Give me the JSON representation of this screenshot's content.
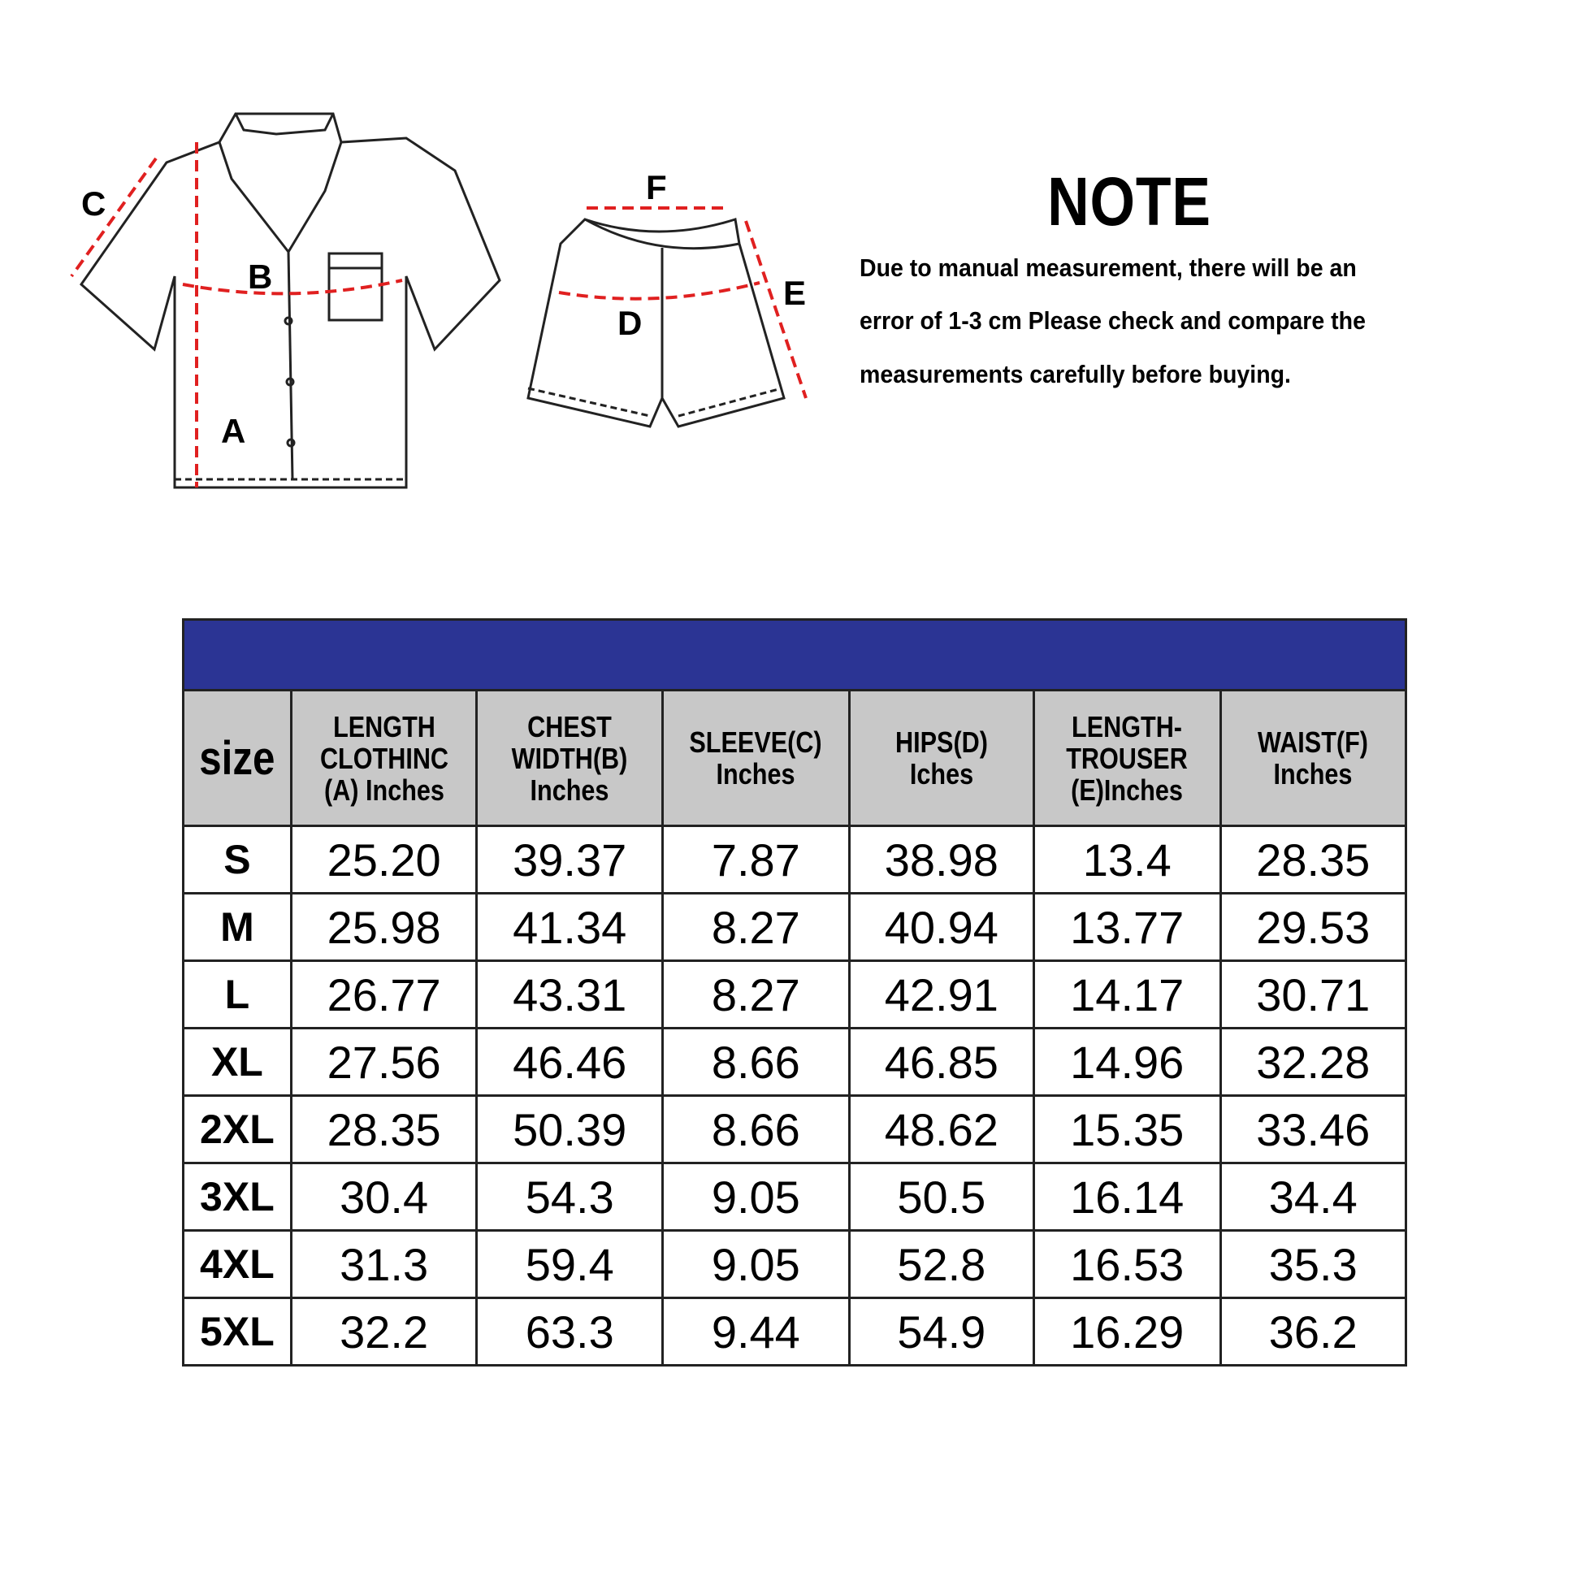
{
  "diagram": {
    "shirt_labels": [
      "A",
      "B",
      "C"
    ],
    "shorts_labels": [
      "D",
      "E",
      "F"
    ],
    "measure_line_color": "#e02020"
  },
  "note": {
    "title": "NOTE",
    "lines": [
      "Due to manual measurement, there will be an",
      "error of 1-3 cm Please check and compare the",
      " measurements carefully before buying."
    ]
  },
  "table": {
    "header_color": "#2b3494",
    "header_cell_color": "#c8c8c8",
    "columns": [
      [
        "size"
      ],
      [
        "LENGTH",
        "CLOTHINC",
        "(A) Inches"
      ],
      [
        "CHEST",
        "WIDTH(B)",
        "Inches"
      ],
      [
        "SLEEVE(C)",
        "Inches"
      ],
      [
        "HIPS(D)",
        "Iches"
      ],
      [
        "LENGTH-",
        "TROUSER",
        "(E)Inches"
      ],
      [
        "WAIST(F)",
        "Inches"
      ]
    ],
    "rows": [
      [
        "S",
        "25.20",
        "39.37",
        "7.87",
        "38.98",
        "13.4",
        "28.35"
      ],
      [
        "M",
        "25.98",
        "41.34",
        "8.27",
        "40.94",
        "13.77",
        "29.53"
      ],
      [
        "L",
        "26.77",
        "43.31",
        "8.27",
        "42.91",
        "14.17",
        "30.71"
      ],
      [
        "XL",
        "27.56",
        "46.46",
        "8.66",
        "46.85",
        "14.96",
        "32.28"
      ],
      [
        "2XL",
        "28.35",
        "50.39",
        "8.66",
        "48.62",
        "15.35",
        "33.46"
      ],
      [
        "3XL",
        "30.4",
        "54.3",
        "9.05",
        "50.5",
        "16.14",
        "34.4"
      ],
      [
        "4XL",
        "31.3",
        "59.4",
        "9.05",
        "52.8",
        "16.53",
        "35.3"
      ],
      [
        "5XL",
        "32.2",
        "63.3",
        "9.44",
        "54.9",
        "16.29",
        "36.2"
      ]
    ]
  }
}
